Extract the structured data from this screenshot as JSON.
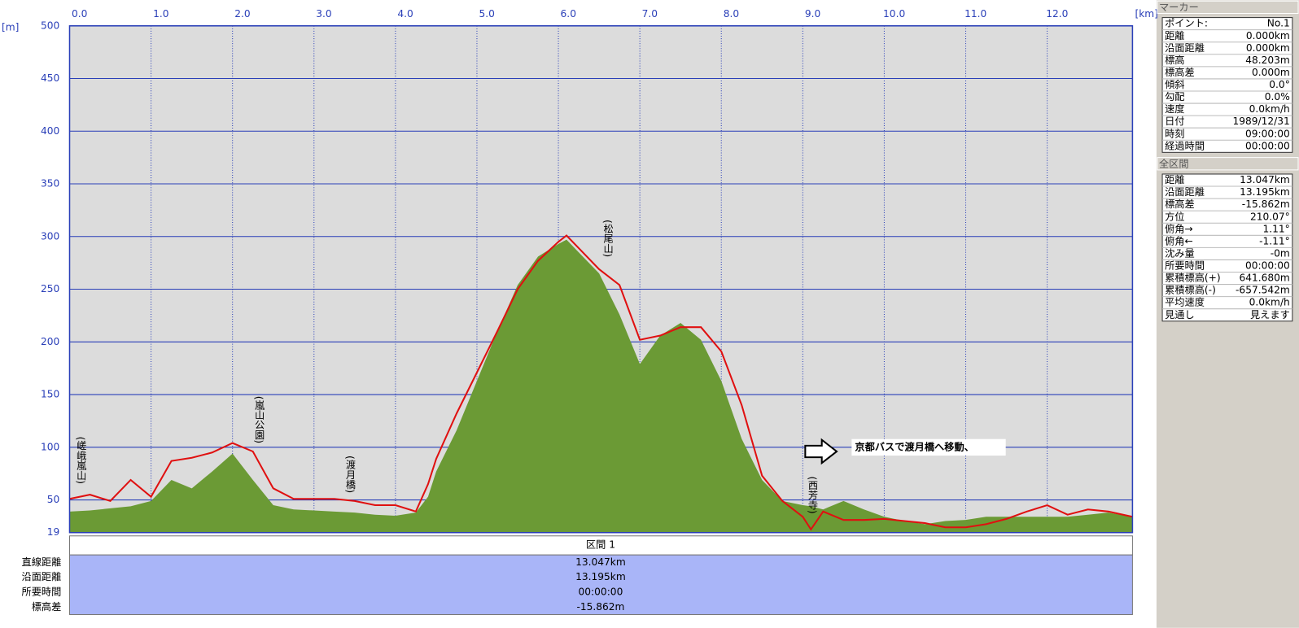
{
  "chart_data": {
    "type": "area",
    "x_unit": "[km]",
    "y_unit": "[m]",
    "x": [
      0,
      0.25,
      0.5,
      0.75,
      1.0,
      1.25,
      1.5,
      1.75,
      2.0,
      2.25,
      2.5,
      2.75,
      3.0,
      3.25,
      3.5,
      3.75,
      4.0,
      4.25,
      4.4,
      4.5,
      4.75,
      5.0,
      5.25,
      5.5,
      5.75,
      6.0,
      6.1,
      6.25,
      6.5,
      6.75,
      7.0,
      7.25,
      7.5,
      7.75,
      8.0,
      8.25,
      8.5,
      8.75,
      9.0,
      9.1,
      9.25,
      9.5,
      9.75,
      10.0,
      10.25,
      10.5,
      10.75,
      11.0,
      11.25,
      11.5,
      11.75,
      12.0,
      12.25,
      12.5,
      12.75,
      13.047
    ],
    "series": [
      {
        "color": "#6b9a35",
        "values": [
          39,
          40,
          42,
          44,
          49,
          69,
          61,
          77,
          94,
          69,
          45,
          41,
          40,
          39,
          38,
          36,
          35,
          38,
          53,
          77,
          116,
          163,
          210,
          254,
          281,
          293,
          297,
          285,
          265,
          226,
          179,
          206,
          218,
          202,
          163,
          108,
          69,
          49,
          45,
          44,
          41,
          49,
          41,
          34,
          30,
          27,
          30,
          31,
          34,
          34,
          34,
          34,
          34,
          36,
          38,
          34
        ]
      },
      {
        "color": "#e01010",
        "values": [
          51,
          55,
          49,
          69,
          53,
          87,
          90,
          95,
          104,
          96,
          61,
          51,
          51,
          51,
          49,
          45,
          45,
          39,
          65,
          89,
          132,
          171,
          210,
          250,
          277,
          295,
          301,
          289,
          269,
          254,
          202,
          206,
          214,
          214,
          191,
          140,
          73,
          49,
          34,
          22,
          39,
          31,
          31,
          32,
          30,
          28,
          24,
          24,
          27,
          32,
          39,
          45,
          36,
          41,
          39,
          34
        ]
      }
    ],
    "xlim": [
      0,
      13.047
    ],
    "xticks": [
      {
        "value": 0,
        "label": "0.0"
      },
      {
        "value": 1,
        "label": "1.0"
      },
      {
        "value": 2,
        "label": "2.0"
      },
      {
        "value": 3,
        "label": "3.0"
      },
      {
        "value": 4,
        "label": "4.0"
      },
      {
        "value": 5,
        "label": "5.0"
      },
      {
        "value": 6,
        "label": "6.0"
      },
      {
        "value": 7,
        "label": "7.0"
      },
      {
        "value": 8,
        "label": "8.0"
      },
      {
        "value": 9,
        "label": "9.0"
      },
      {
        "value": 10,
        "label": "10.0"
      },
      {
        "value": 11,
        "label": "11.0"
      },
      {
        "value": 12,
        "label": "12.0"
      }
    ],
    "ylim": [
      19,
      500
    ],
    "yticks": [
      19,
      50,
      100,
      150,
      200,
      250,
      300,
      350,
      400,
      450,
      500
    ],
    "grid": true,
    "annotations": [
      "(嵯峨嵐山)",
      "(嵐山公園)",
      "(渡月橋)",
      "(松尾山)",
      "(西芳寺)"
    ],
    "note": "京都バスで渡月橋へ移動、"
  },
  "segment_table": {
    "header": "区間 1",
    "rows": [
      [
        "直線距離",
        "13.047km"
      ],
      [
        "沿面距離",
        "13.195km"
      ],
      [
        "所要時間",
        "00:00:00"
      ],
      [
        "標高差",
        "-15.862m"
      ]
    ]
  },
  "marker_panel": {
    "title": "マーカー",
    "rows": [
      [
        "ポイント:",
        "No.1"
      ],
      [
        "距離",
        "0.000km"
      ],
      [
        "沿面距離",
        "0.000km"
      ],
      [
        "標高",
        "48.203m"
      ],
      [
        "標高差",
        "0.000m"
      ],
      [
        "傾斜",
        "0.0°"
      ],
      [
        "勾配",
        "0.0%"
      ],
      [
        "速度",
        "0.0km/h"
      ],
      [
        "日付",
        "1989/12/31"
      ],
      [
        "時刻",
        "09:00:00"
      ],
      [
        "経過時間",
        "00:00:00"
      ]
    ]
  },
  "total_panel": {
    "title": "全区間",
    "rows": [
      [
        "距離",
        "13.047km"
      ],
      [
        "沿面距離",
        "13.195km"
      ],
      [
        "標高差",
        "-15.862m"
      ],
      [
        "方位",
        "210.07°"
      ],
      [
        "俯角→",
        "1.11°"
      ],
      [
        "俯角←",
        "-1.11°"
      ],
      [
        "沈み量",
        "-0m"
      ],
      [
        "所要時間",
        "00:00:00"
      ],
      [
        "累積標高(+)",
        "641.680m"
      ],
      [
        "累積標高(-)",
        "-657.542m"
      ],
      [
        "平均速度",
        "0.0km/h"
      ],
      [
        "見通し",
        "見えます"
      ]
    ]
  }
}
